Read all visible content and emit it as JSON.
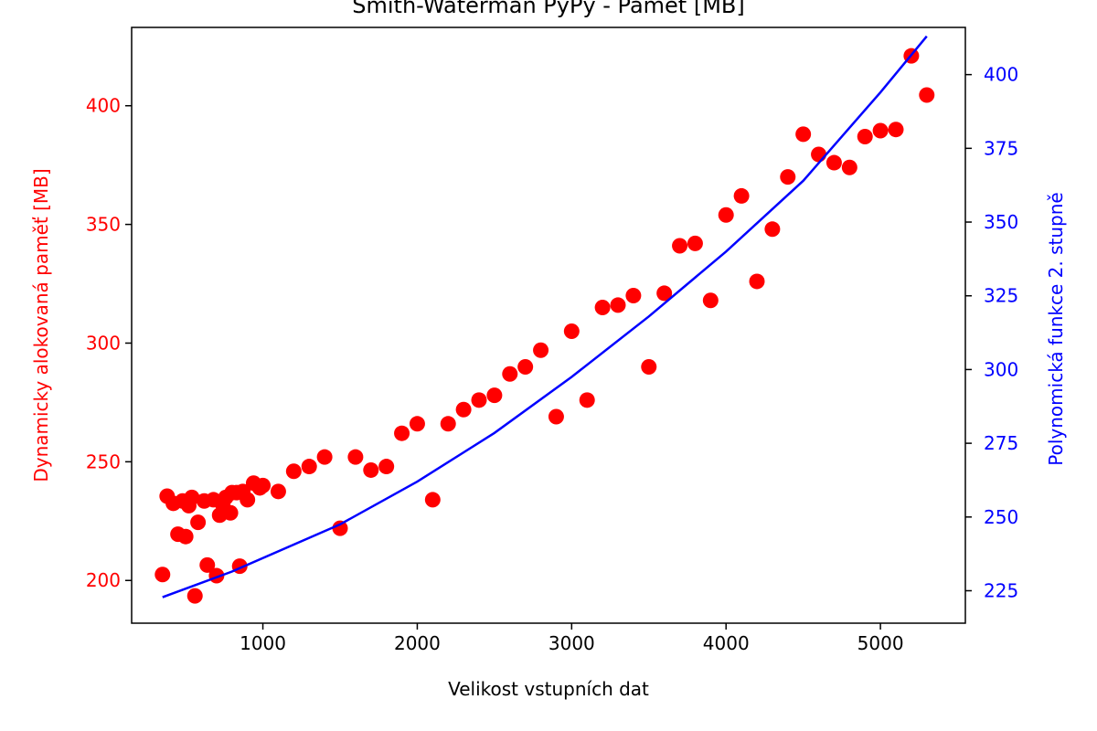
{
  "chart_data": {
    "type": "scatter",
    "title": "Smith-Waterman PyPy - Paměť [MB]",
    "xlabel": "Velikost vstupních dat",
    "ylabel_left": "Dynamicky alokovaná paměť [MB]",
    "ylabel_right": "Polynomická funkce 2. stupně",
    "xlim": [
      150,
      5550
    ],
    "ylim_left": [
      182,
      433
    ],
    "ylim_right": [
      214,
      416
    ],
    "xticks": [
      1000,
      2000,
      3000,
      4000,
      5000
    ],
    "yticks_left": [
      200,
      250,
      300,
      350,
      400
    ],
    "yticks_right": [
      225,
      250,
      275,
      300,
      325,
      350,
      375,
      400
    ],
    "grid": false,
    "colors": {
      "scatter": "#ff0000",
      "fit": "#0000ff",
      "axes": "#000000"
    },
    "series": [
      {
        "axis": "left",
        "kind": "scatter",
        "points": [
          [
            350,
            202.5
          ],
          [
            380,
            235.5
          ],
          [
            420,
            232.5
          ],
          [
            450,
            219.5
          ],
          [
            480,
            233.5
          ],
          [
            500,
            218.5
          ],
          [
            520,
            231.5
          ],
          [
            540,
            235
          ],
          [
            560,
            193.5
          ],
          [
            580,
            224.5
          ],
          [
            620,
            233.5
          ],
          [
            640,
            206.5
          ],
          [
            680,
            234
          ],
          [
            700,
            202
          ],
          [
            720,
            227.5
          ],
          [
            740,
            232
          ],
          [
            760,
            235
          ],
          [
            790,
            228.5
          ],
          [
            800,
            237
          ],
          [
            830,
            237
          ],
          [
            850,
            206
          ],
          [
            870,
            237.5
          ],
          [
            900,
            234
          ],
          [
            940,
            241
          ],
          [
            980,
            239
          ],
          [
            1000,
            240
          ],
          [
            1100,
            237.5
          ],
          [
            1200,
            246
          ],
          [
            1300,
            248
          ],
          [
            1400,
            252
          ],
          [
            1500,
            222
          ],
          [
            1600,
            252
          ],
          [
            1700,
            246.5
          ],
          [
            1800,
            248
          ],
          [
            1900,
            262
          ],
          [
            2000,
            266
          ],
          [
            2100,
            234
          ],
          [
            2200,
            266
          ],
          [
            2300,
            272
          ],
          [
            2400,
            276
          ],
          [
            2500,
            278
          ],
          [
            2600,
            287
          ],
          [
            2700,
            290
          ],
          [
            2800,
            297
          ],
          [
            2900,
            269
          ],
          [
            3000,
            305
          ],
          [
            3100,
            276
          ],
          [
            3200,
            315
          ],
          [
            3300,
            316
          ],
          [
            3400,
            320
          ],
          [
            3500,
            290
          ],
          [
            3600,
            321
          ],
          [
            3700,
            341
          ],
          [
            3800,
            342
          ],
          [
            3900,
            318
          ],
          [
            4000,
            354
          ],
          [
            4100,
            362
          ],
          [
            4200,
            326
          ],
          [
            4300,
            348
          ],
          [
            4400,
            370
          ],
          [
            4500,
            388
          ],
          [
            4600,
            379.5
          ],
          [
            4700,
            376
          ],
          [
            4800,
            374
          ],
          [
            4900,
            387
          ],
          [
            5000,
            389.5
          ],
          [
            5100,
            390
          ],
          [
            5200,
            421
          ],
          [
            5300,
            404.5
          ]
        ]
      },
      {
        "axis": "right",
        "kind": "line",
        "points": [
          [
            350,
            222.8
          ],
          [
            800,
            231.5
          ],
          [
            1500,
            247.5
          ],
          [
            2000,
            262
          ],
          [
            2500,
            278.5
          ],
          [
            3000,
            297.5
          ],
          [
            3500,
            318
          ],
          [
            4000,
            340
          ],
          [
            4500,
            364
          ],
          [
            5000,
            394
          ],
          [
            5300,
            413
          ]
        ]
      }
    ]
  }
}
